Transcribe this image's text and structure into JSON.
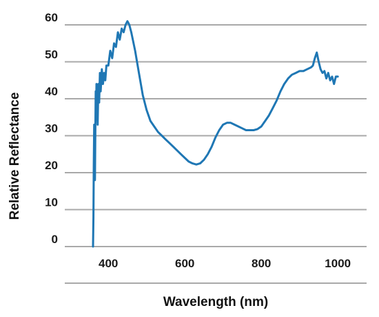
{
  "chart_data": {
    "type": "line",
    "title": "",
    "xlabel": "Wavelength (nm)",
    "ylabel": "Relative Reflectance",
    "xlim": [
      360,
      1010
    ],
    "ylim": [
      0,
      60
    ],
    "xticks": [
      "400",
      "600",
      "800",
      "1000"
    ],
    "yticks": [
      "0",
      "10",
      "20",
      "30",
      "40",
      "50",
      "60"
    ],
    "grid": "horizontal",
    "line_color": "#1f77b4",
    "series": [
      {
        "name": "",
        "x": [
          360,
          361,
          362,
          363,
          364,
          365,
          366,
          367,
          368,
          369,
          370,
          372,
          374,
          376,
          378,
          380,
          383,
          386,
          389,
          392,
          395,
          400,
          405,
          410,
          415,
          420,
          425,
          430,
          435,
          440,
          445,
          450,
          455,
          460,
          470,
          480,
          490,
          500,
          510,
          520,
          530,
          540,
          550,
          560,
          570,
          580,
          590,
          600,
          610,
          620,
          630,
          640,
          650,
          660,
          670,
          680,
          690,
          700,
          710,
          720,
          730,
          740,
          750,
          760,
          770,
          780,
          790,
          800,
          810,
          820,
          830,
          840,
          850,
          860,
          870,
          880,
          890,
          900,
          910,
          920,
          930,
          935,
          940,
          945,
          950,
          955,
          960,
          965,
          970,
          975,
          980,
          985,
          990,
          995,
          1000
        ],
        "values": [
          0,
          8,
          22,
          33,
          28,
          18,
          30,
          42,
          36,
          44,
          40,
          33,
          44,
          39,
          47,
          42,
          48,
          44,
          47,
          45,
          49,
          49,
          53,
          51,
          55,
          54,
          58,
          56,
          59,
          58,
          60,
          61,
          60,
          58,
          53,
          47,
          41,
          37,
          34,
          32.5,
          31,
          30,
          29,
          28,
          27,
          26,
          25,
          24,
          23,
          22.5,
          22.2,
          22.5,
          23.5,
          25,
          27,
          29.5,
          31.5,
          33,
          33.5,
          33.5,
          33,
          32.5,
          32,
          31.5,
          31.5,
          31.5,
          31.8,
          32.5,
          34,
          35.5,
          37.5,
          39.5,
          42,
          44,
          45.5,
          46.5,
          47,
          47.5,
          47.5,
          48,
          48.5,
          49,
          51,
          52.5,
          50,
          48,
          47,
          47.5,
          45.5,
          47,
          45,
          46,
          44,
          46,
          46
        ]
      }
    ]
  }
}
